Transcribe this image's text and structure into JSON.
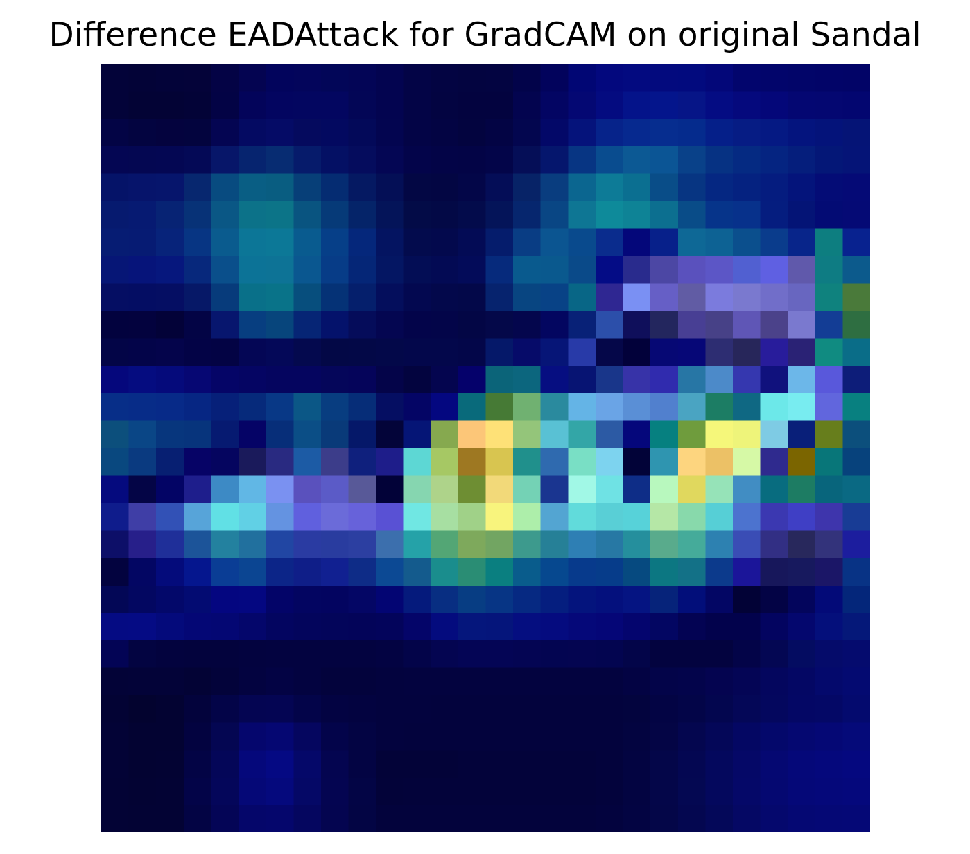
{
  "chart_data": {
    "type": "heatmap",
    "title": "Difference EADAttack for GradCAM on original Sandal",
    "xlabel": "",
    "ylabel": "",
    "axes_visible": false,
    "grid": false,
    "colorbar": false,
    "rows": 28,
    "cols": 28,
    "colors": [
      [
        "#030339",
        "#030337",
        "#030339",
        "#040339",
        "#040345",
        "#040451",
        "#02045c",
        "#03055b",
        "#020658",
        "#030556",
        "#030450",
        "#030446",
        "#030442",
        "#030440",
        "#030441",
        "#02034a",
        "#02035c",
        "#010674",
        "#03087e",
        "#030a80",
        "#030a7e",
        "#020a7e",
        "#030779",
        "#02056d",
        "#02056b",
        "#020569",
        "#020468",
        "#020467"
      ],
      [
        "#030339",
        "#030335",
        "#030335",
        "#030337",
        "#030345",
        "#03045a",
        "#030560",
        "#030660",
        "#030660",
        "#030656",
        "#030450",
        "#030446",
        "#030441",
        "#03033f",
        "#03033f",
        "#03044f",
        "#030563",
        "#040873",
        "#040b80",
        "#04138a",
        "#04158c",
        "#061587",
        "#040c83",
        "#05097d",
        "#040779",
        "#040772",
        "#040771",
        "#030670"
      ],
      [
        "#030445",
        "#030440",
        "#04033e",
        "#03043e",
        "#040552",
        "#040a62",
        "#050b66",
        "#050a5e",
        "#030960",
        "#030959",
        "#030550",
        "#030446",
        "#030443",
        "#03043f",
        "#030444",
        "#03064f",
        "#030868",
        "#05137b",
        "#06238a",
        "#06298f",
        "#062d8f",
        "#052b8d",
        "#051f89",
        "#061c84",
        "#051983",
        "#04147e",
        "#04137a",
        "#051476"
      ],
      [
        "#040653",
        "#040752",
        "#040753",
        "#040956",
        "#071669",
        "#06246f",
        "#072c72",
        "#061b6b",
        "#041064",
        "#050c5d",
        "#040654",
        "#03044a",
        "#030447",
        "#030446",
        "#030549",
        "#050e57",
        "#05166d",
        "#073583",
        "#094c8f",
        "#0c5994",
        "#0b5595",
        "#094189",
        "#063283",
        "#052a82",
        "#052481",
        "#051e7c",
        "#041777",
        "#051477"
      ],
      [
        "#051368",
        "#06146b",
        "#06156c",
        "#07276f",
        "#084b80",
        "#095e84",
        "#095d81",
        "#073f78",
        "#052c72",
        "#051962",
        "#040f56",
        "#030744",
        "#030643",
        "#030648",
        "#040d57",
        "#072367",
        "#093d7f",
        "#0b6690",
        "#0d7b97",
        "#0b6f91",
        "#094d88",
        "#073582",
        "#052782",
        "#052280",
        "#051c7f",
        "#04147b",
        "#040c76",
        "#050a76"
      ],
      [
        "#061a6f",
        "#061a72",
        "#072374",
        "#073277",
        "#0a5785",
        "#0c7289",
        "#0c7488",
        "#095480",
        "#063a78",
        "#052469",
        "#041459",
        "#030b47",
        "#030946",
        "#030b4b",
        "#041459",
        "#06266e",
        "#094684",
        "#0e7694",
        "#0e8a9a",
        "#0e8396",
        "#0c6f90",
        "#094c88",
        "#06348a",
        "#07318b",
        "#051d7f",
        "#041476",
        "#030b74",
        "#050a75"
      ],
      [
        "#061c73",
        "#061b73",
        "#07237a",
        "#073583",
        "#0a5b8e",
        "#0c7697",
        "#0c7897",
        "#095b8f",
        "#063f88",
        "#05277b",
        "#041461",
        "#030b4d",
        "#03094d",
        "#030b55",
        "#051c6c",
        "#093d84",
        "#0b5591",
        "#094a8d",
        "#0a2c8d",
        "#04077a",
        "#07208a",
        "#0e6896",
        "#0d6294",
        "#0b4f8d",
        "#0a3c8c",
        "#08258a",
        "#0d7e80",
        "#08228f"
      ],
      [
        "#061676",
        "#06147a",
        "#06177d",
        "#07287c",
        "#0a4f8b",
        "#0c7397",
        "#0d7396",
        "#0a5790",
        "#073c87",
        "#052677",
        "#041663",
        "#030d55",
        "#030a54",
        "#030b59",
        "#062a7c",
        "#095a8e",
        "#0a598e",
        "#0a4a89",
        "#040c86",
        "#292b8d",
        "#4c47a4",
        "#5a51bd",
        "#5c56c6",
        "#5160d1",
        "#5f60e2",
        "#6059ab",
        "#0e7c83",
        "#0c5a8c"
      ],
      [
        "#050e63",
        "#040d63",
        "#050e63",
        "#061867",
        "#073b7b",
        "#097089",
        "#097389",
        "#074e7d",
        "#053276",
        "#051f6c",
        "#040e5c",
        "#030850",
        "#03084b",
        "#030849",
        "#06236e",
        "#084581",
        "#084286",
        "#086686",
        "#2f2792",
        "#7a90f3",
        "#665fc6",
        "#615ca4",
        "#7b7bdd",
        "#7a79cf",
        "#716ec9",
        "#6866c0",
        "#0f827e",
        "#4a7a3a"
      ],
      [
        "#02023e",
        "#03023e",
        "#030238",
        "#030445",
        "#07166e",
        "#073e80",
        "#07457c",
        "#062575",
        "#04126b",
        "#050c5a",
        "#040651",
        "#03044a",
        "#030549",
        "#030645",
        "#040849",
        "#04064d",
        "#030660",
        "#082177",
        "#2c4faa",
        "#0f0f5b",
        "#23265e",
        "#483f94",
        "#474187",
        "#5f56b6",
        "#4b428a",
        "#7a79cf",
        "#133d95",
        "#2e6e41"
      ],
      [
        "#030547",
        "#030449",
        "#04044b",
        "#030346",
        "#030344",
        "#040655",
        "#040858",
        "#04094e",
        "#030846",
        "#030847",
        "#030849",
        "#03074b",
        "#03074b",
        "#030649",
        "#051869",
        "#060b69",
        "#061577",
        "#283aa8",
        "#050749",
        "#02013a",
        "#060874",
        "#060777",
        "#2d2d72",
        "#27265a",
        "#281c9b",
        "#2a2275",
        "#108b81",
        "#0a6d88"
      ],
      [
        "#05077c",
        "#050c80",
        "#050a7b",
        "#060773",
        "#050567",
        "#050563",
        "#05055f",
        "#05055f",
        "#05065a",
        "#05045a",
        "#040449",
        "#03043f",
        "#04054f",
        "#05016b",
        "#0b6479",
        "#0c667e",
        "#060e81",
        "#071473",
        "#19368a",
        "#3733a8",
        "#302bae",
        "#2776a5",
        "#4c8ac9",
        "#3537af",
        "#10117d",
        "#6cb7e9",
        "#5958db",
        "#0d1d79"
      ],
      [
        "#072e88",
        "#072c88",
        "#072a88",
        "#062683",
        "#062079",
        "#062a7b",
        "#083886",
        "#0b5786",
        "#083d80",
        "#062d78",
        "#050e62",
        "#040565",
        "#040780",
        "#096a7b",
        "#467a35",
        "#70b171",
        "#2a8a9e",
        "#64b4e6",
        "#6aa4e6",
        "#5a8fd6",
        "#5180ce",
        "#4aa4c2",
        "#1c7d64",
        "#0f6883",
        "#6ce8e9",
        "#78ecf0",
        "#6166dd",
        "#088080"
      ],
      [
        "#0c4f7c",
        "#0a4686",
        "#07367d",
        "#07347c",
        "#061a71",
        "#050366",
        "#072e79",
        "#0b4e86",
        "#093a79",
        "#051869",
        "#030439",
        "#051576",
        "#86a94f",
        "#fcc678",
        "#fee177",
        "#94c57a",
        "#59c1d4",
        "#33a6a7",
        "#2c5aa4",
        "#05077b",
        "#068080",
        "#6f9c3d",
        "#f5f77a",
        "#eef47a",
        "#7ecbe4",
        "#091f79",
        "#677e1c",
        "#0c4f7c"
      ],
      [
        "#09487f",
        "#0a3a80",
        "#071f72",
        "#060366",
        "#05055f",
        "#1a1a5b",
        "#292a81",
        "#1c5ba5",
        "#3c3d8a",
        "#0f207d",
        "#1e1d8a",
        "#5dd7d4",
        "#a6c864",
        "#9e7822",
        "#d8c550",
        "#20908c",
        "#2f6aaf",
        "#79dfc5",
        "#7dd3ef",
        "#020338",
        "#2f95b0",
        "#fdd57f",
        "#ecc166",
        "#d6f9a6",
        "#2f2a8e",
        "#7b6500",
        "#087679",
        "#07427c"
      ],
      [
        "#050a7e",
        "#040546",
        "#030465",
        "#1e1e8c",
        "#3d8ac5",
        "#61b7e5",
        "#7a91f1",
        "#5a51bd",
        "#5b5bc7",
        "#585998",
        "#020238",
        "#86d6b0",
        "#aed38a",
        "#6e8e33",
        "#f2d979",
        "#74d2b5",
        "#1a3590",
        "#a1f8e6",
        "#6fe2e4",
        "#0e2d87",
        "#b8f8be",
        "#e0d85e",
        "#96e3b8",
        "#418dc3",
        "#086c7f",
        "#1d7c63",
        "#08657c",
        "#0a6983"
      ],
      [
        "#0f1c8c",
        "#3f3ea6",
        "#3251b6",
        "#57a4d9",
        "#61e0e5",
        "#61d0e5",
        "#6493e1",
        "#6060de",
        "#6b6bd9",
        "#6762da",
        "#5951d4",
        "#70e7e3",
        "#a7dfa2",
        "#a0d188",
        "#f8f47d",
        "#adeeaa",
        "#53a5d2",
        "#61dbdb",
        "#59cfd6",
        "#57d2d9",
        "#b5e7a6",
        "#88d9ab",
        "#56cfd6",
        "#4c73cf",
        "#3b38b1",
        "#3f3fc5",
        "#3e35ac",
        "#183c95"
      ],
      [
        "#0d0f68",
        "#271f8a",
        "#1f2f99",
        "#1c5499",
        "#23819f",
        "#21709e",
        "#2146a3",
        "#2a3ba2",
        "#293c9f",
        "#2c3fa1",
        "#3c6fad",
        "#25a2a8",
        "#53a675",
        "#7ea95c",
        "#72a562",
        "#3d9a8d",
        "#268097",
        "#2e7fb4",
        "#2778a4",
        "#258f9d",
        "#59ab8c",
        "#45ab9a",
        "#2d81b1",
        "#3a4db5",
        "#322f84",
        "#28285c",
        "#33337b",
        "#1c1d9e"
      ],
      [
        "#03033f",
        "#030663",
        "#040b7b",
        "#05168e",
        "#0a3d95",
        "#0b4592",
        "#0c2588",
        "#0f1e88",
        "#112091",
        "#0e2c87",
        "#0c4994",
        "#145b8d",
        "#1a8d8d",
        "#2a8d74",
        "#0a7f80",
        "#095c8c",
        "#06488f",
        "#073a8c",
        "#063c8a",
        "#064a80",
        "#0c7782",
        "#137187",
        "#0c3a8c",
        "#1b1599",
        "#17175b",
        "#17195e",
        "#1b1667",
        "#083385"
      ],
      [
        "#030756",
        "#030761",
        "#03086a",
        "#030b72",
        "#040680",
        "#040781",
        "#030468",
        "#030561",
        "#030460",
        "#040665",
        "#030573",
        "#051a7c",
        "#082e82",
        "#073d83",
        "#073585",
        "#062982",
        "#051e7f",
        "#04147d",
        "#04107d",
        "#051482",
        "#06237a",
        "#020e7a",
        "#030664",
        "#020236",
        "#030345",
        "#03055c",
        "#030a78",
        "#04267a"
      ],
      [
        "#050b83",
        "#050b84",
        "#040a7b",
        "#040775",
        "#040773",
        "#04066b",
        "#030560",
        "#03055c",
        "#03055a",
        "#030459",
        "#03045b",
        "#040569",
        "#040b7e",
        "#05167c",
        "#05157b",
        "#050e80",
        "#050b7f",
        "#050879",
        "#050677",
        "#04056e",
        "#030662",
        "#030353",
        "#02024c",
        "#02024c",
        "#030460",
        "#04076e",
        "#040f7b",
        "#051879"
      ],
      [
        "#030455",
        "#030441",
        "#03033e",
        "#03033d",
        "#03033d",
        "#03033f",
        "#030340",
        "#030340",
        "#030340",
        "#030340",
        "#030342",
        "#030449",
        "#040551",
        "#040555",
        "#040555",
        "#040553",
        "#030551",
        "#040551",
        "#030550",
        "#030549",
        "#03033f",
        "#03033f",
        "#03033f",
        "#030448",
        "#040753",
        "#040c61",
        "#050b6a",
        "#050b6e"
      ],
      [
        "#030337",
        "#030338",
        "#030338",
        "#030335",
        "#03033a",
        "#030340",
        "#030344",
        "#030340",
        "#03033c",
        "#03033c",
        "#03033e",
        "#03033f",
        "#03033f",
        "#03033f",
        "#03033f",
        "#03033f",
        "#03033f",
        "#03033f",
        "#03033f",
        "#030343",
        "#030449",
        "#03044b",
        "#040450",
        "#040555",
        "#04065e",
        "#040764",
        "#04096c",
        "#040a71"
      ],
      [
        "#030334",
        "#03032f",
        "#030332",
        "#03033c",
        "#030448",
        "#040552",
        "#040553",
        "#030449",
        "#030342",
        "#030340",
        "#03033e",
        "#03033e",
        "#03033d",
        "#03033d",
        "#03033d",
        "#03033d",
        "#03033d",
        "#03033d",
        "#03033d",
        "#03043e",
        "#030444",
        "#030548",
        "#03064f",
        "#040757",
        "#04075e",
        "#040765",
        "#040866",
        "#040a6e"
      ],
      [
        "#030336",
        "#030332",
        "#030332",
        "#030340",
        "#040652",
        "#05066d",
        "#050772",
        "#05065f",
        "#03044a",
        "#030443",
        "#03033e",
        "#03033d",
        "#03033d",
        "#03033d",
        "#03033d",
        "#03033d",
        "#03033d",
        "#03033d",
        "#03033d",
        "#030440",
        "#040545",
        "#04064f",
        "#040758",
        "#040763",
        "#04086b",
        "#050871",
        "#050875",
        "#050a79"
      ],
      [
        "#030336",
        "#030332",
        "#030333",
        "#030445",
        "#040658",
        "#05087b",
        "#050983",
        "#050869",
        "#040550",
        "#030443",
        "#030338",
        "#030338",
        "#030338",
        "#03033a",
        "#03033a",
        "#03033a",
        "#03033a",
        "#03033a",
        "#03033c",
        "#030441",
        "#040649",
        "#040752",
        "#04085d",
        "#050867",
        "#050872",
        "#050879",
        "#05087c",
        "#05087f"
      ],
      [
        "#030335",
        "#030333",
        "#030334",
        "#030448",
        "#04065a",
        "#050877",
        "#05097d",
        "#050866",
        "#040551",
        "#030545",
        "#030339",
        "#03033a",
        "#03033a",
        "#03033a",
        "#03033a",
        "#03033a",
        "#03033a",
        "#03033a",
        "#03033c",
        "#030441",
        "#040649",
        "#040852",
        "#04085d",
        "#050868",
        "#050871",
        "#050878",
        "#05087a",
        "#05087c"
      ],
      [
        "#030335",
        "#030334",
        "#030334",
        "#030444",
        "#040556",
        "#05066a",
        "#05066c",
        "#05065f",
        "#040550",
        "#030544",
        "#03033c",
        "#03033c",
        "#03033c",
        "#03033c",
        "#03033c",
        "#03033c",
        "#03033c",
        "#03033c",
        "#03033e",
        "#030442",
        "#040648",
        "#040750",
        "#040859",
        "#050864",
        "#05086d",
        "#050873",
        "#050875",
        "#050876"
      ]
    ]
  }
}
